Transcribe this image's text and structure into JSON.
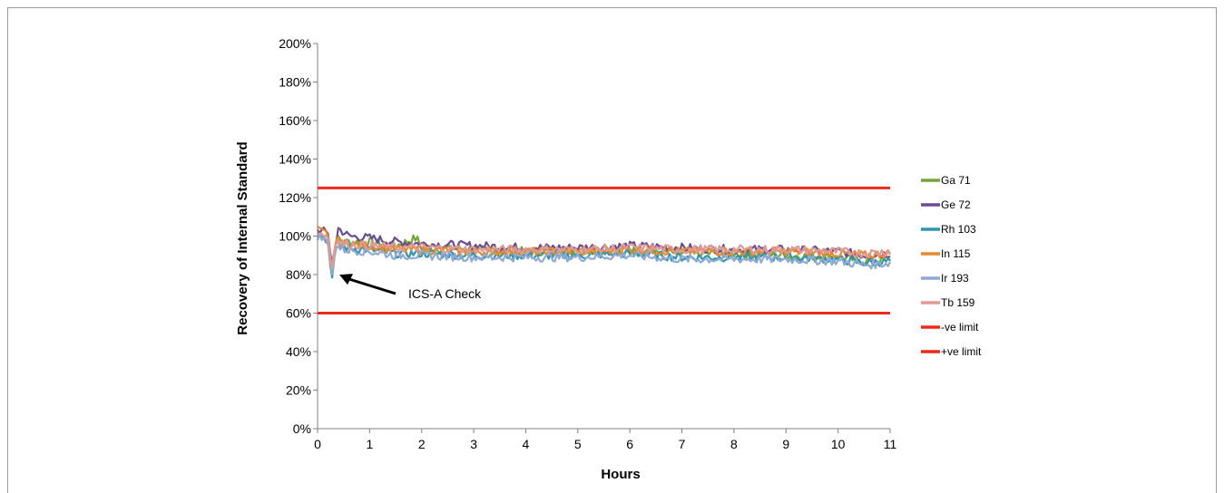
{
  "chart_data": {
    "type": "line",
    "xlabel": "Hours",
    "ylabel": "Recovery of Internal Standard",
    "xlim": [
      0,
      11
    ],
    "ylim": [
      0,
      200
    ],
    "x_ticks": [
      "0",
      "1",
      "2",
      "3",
      "4",
      "5",
      "6",
      "7",
      "8",
      "9",
      "10",
      "11"
    ],
    "y_ticks": [
      "0%",
      "20%",
      "40%",
      "60%",
      "80%",
      "100%",
      "120%",
      "140%",
      "160%",
      "180%",
      "200%"
    ],
    "grid": false,
    "legend_position": "right",
    "annotation": {
      "text": "ICS-A Check",
      "x": 0.28,
      "y": 79
    },
    "series": [
      {
        "name": "Ga 71",
        "color": "#77a33c",
        "points": [
          [
            0,
            102
          ],
          [
            0.2,
            100
          ],
          [
            0.27,
            80
          ],
          [
            0.35,
            99
          ],
          [
            0.5,
            97
          ],
          [
            1,
            97
          ],
          [
            1.5,
            95
          ],
          [
            1.9,
            99
          ],
          [
            2,
            94
          ],
          [
            3,
            93
          ],
          [
            4,
            92
          ],
          [
            5,
            92
          ],
          [
            6,
            93
          ],
          [
            7,
            91
          ],
          [
            8,
            91
          ],
          [
            9,
            90
          ],
          [
            10,
            89
          ],
          [
            10.5,
            87
          ],
          [
            11,
            88
          ]
        ]
      },
      {
        "name": "Ge 72",
        "color": "#6a4c93",
        "points": [
          [
            0,
            103
          ],
          [
            0.2,
            102
          ],
          [
            0.27,
            84
          ],
          [
            0.4,
            104
          ],
          [
            0.6,
            100
          ],
          [
            1,
            99
          ],
          [
            1.5,
            97
          ],
          [
            2,
            96
          ],
          [
            3,
            95
          ],
          [
            4,
            94
          ],
          [
            5,
            94
          ],
          [
            6,
            95
          ],
          [
            7,
            94
          ],
          [
            8,
            93
          ],
          [
            9,
            93
          ],
          [
            10,
            92
          ],
          [
            10.5,
            90
          ],
          [
            11,
            91
          ]
        ]
      },
      {
        "name": "Rh 103",
        "color": "#2f97a8",
        "points": [
          [
            0,
            101
          ],
          [
            0.2,
            98
          ],
          [
            0.27,
            76
          ],
          [
            0.35,
            96
          ],
          [
            0.5,
            94
          ],
          [
            1,
            93
          ],
          [
            1.5,
            91
          ],
          [
            2,
            91
          ],
          [
            3,
            90
          ],
          [
            4,
            90
          ],
          [
            5,
            90
          ],
          [
            6,
            91
          ],
          [
            7,
            89
          ],
          [
            8,
            89
          ],
          [
            9,
            89
          ],
          [
            10,
            88
          ],
          [
            10.5,
            86
          ],
          [
            11,
            87
          ]
        ]
      },
      {
        "name": "In 115",
        "color": "#e58a2e",
        "points": [
          [
            0,
            103
          ],
          [
            0.2,
            101
          ],
          [
            0.27,
            82
          ],
          [
            0.35,
            98
          ],
          [
            0.5,
            96
          ],
          [
            1,
            95
          ],
          [
            1.5,
            93
          ],
          [
            2,
            93
          ],
          [
            3,
            92
          ],
          [
            4,
            92
          ],
          [
            5,
            92
          ],
          [
            6,
            93
          ],
          [
            7,
            92
          ],
          [
            8,
            92
          ],
          [
            9,
            92
          ],
          [
            10,
            91
          ],
          [
            10.5,
            90
          ],
          [
            11,
            91
          ]
        ]
      },
      {
        "name": "Ir 193",
        "color": "#8fa9d6",
        "points": [
          [
            0,
            100
          ],
          [
            0.2,
            97
          ],
          [
            0.27,
            78
          ],
          [
            0.35,
            95
          ],
          [
            0.5,
            93
          ],
          [
            1,
            92
          ],
          [
            1.5,
            90
          ],
          [
            2,
            90
          ],
          [
            3,
            89
          ],
          [
            4,
            89
          ],
          [
            5,
            89
          ],
          [
            6,
            90
          ],
          [
            7,
            88
          ],
          [
            8,
            88
          ],
          [
            9,
            88
          ],
          [
            10,
            87
          ],
          [
            10.5,
            85
          ],
          [
            11,
            86
          ]
        ]
      },
      {
        "name": "Tb 159",
        "color": "#e09a96",
        "points": [
          [
            0,
            102
          ],
          [
            0.2,
            100
          ],
          [
            0.27,
            81
          ],
          [
            0.35,
            98
          ],
          [
            0.5,
            96
          ],
          [
            1,
            95
          ],
          [
            1.5,
            94
          ],
          [
            2,
            94
          ],
          [
            3,
            93
          ],
          [
            4,
            93
          ],
          [
            5,
            93
          ],
          [
            6,
            94
          ],
          [
            7,
            93
          ],
          [
            8,
            93
          ],
          [
            9,
            93
          ],
          [
            10,
            92
          ],
          [
            10.5,
            91
          ],
          [
            11,
            92
          ]
        ]
      },
      {
        "name": "-ve limit",
        "color": "#ee2a1c",
        "points": [
          [
            0,
            60
          ],
          [
            11,
            60
          ]
        ]
      },
      {
        "name": "+ve limit",
        "color": "#ee2a1c",
        "points": [
          [
            0,
            125
          ],
          [
            11,
            125
          ]
        ]
      }
    ]
  }
}
